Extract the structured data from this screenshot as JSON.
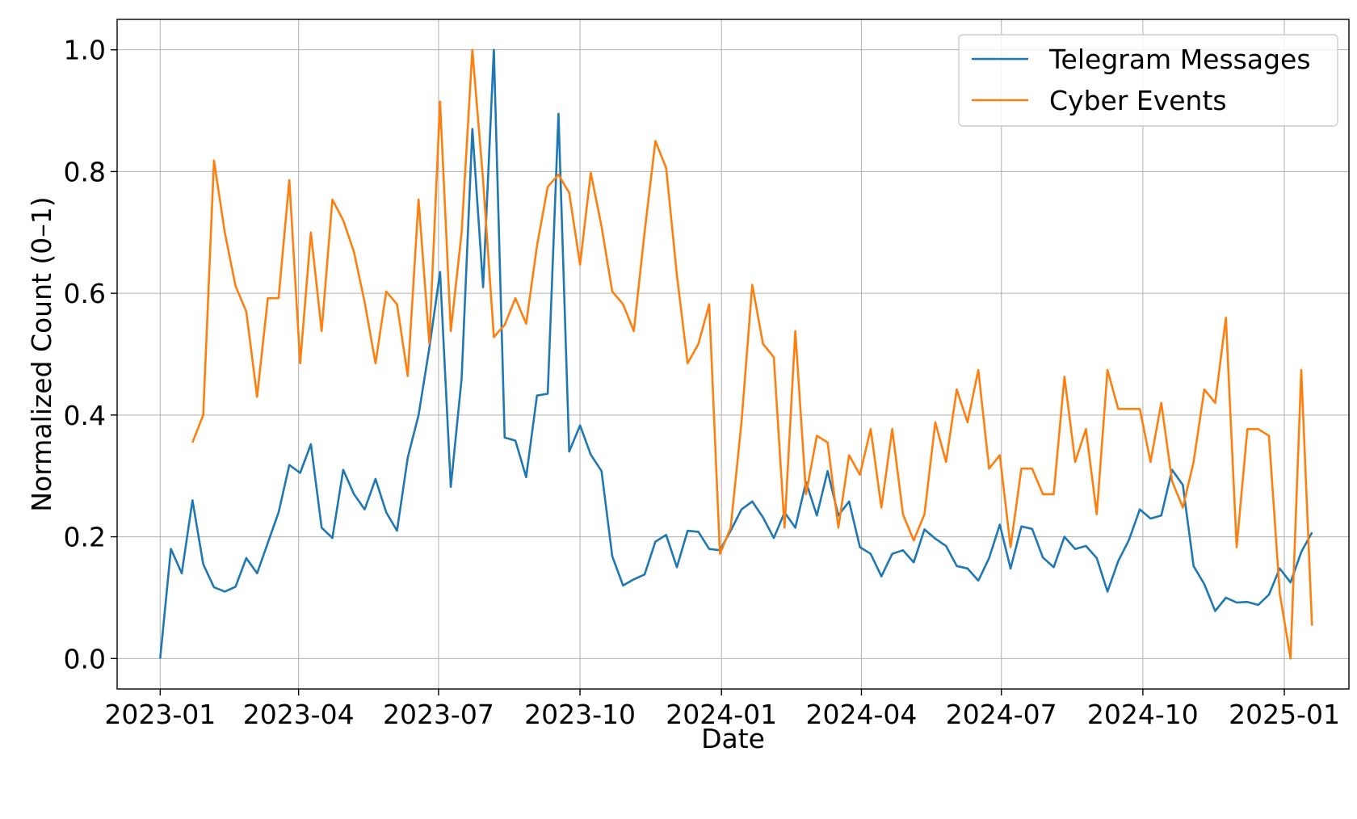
{
  "chart_data": {
    "type": "line",
    "xlabel": "Date",
    "ylabel": "Normalized Count (0–1)",
    "x_range": [
      "2022-12-04",
      "2025-02-12"
    ],
    "ylim": [
      -0.05,
      1.05
    ],
    "grid": true,
    "legend_placement": "top-right",
    "x_ticks": [
      "2023-01",
      "2023-04",
      "2023-07",
      "2023-10",
      "2024-01",
      "2024-04",
      "2024-07",
      "2024-10",
      "2025-01"
    ],
    "y_ticks": [
      "0.0",
      "0.2",
      "0.4",
      "0.6",
      "0.8",
      "1.0"
    ],
    "series": [
      {
        "name": "Telegram Messages",
        "color": "#1f77b4",
        "points": [
          [
            "2023-01-01",
            0.0
          ],
          [
            "2023-01-08",
            0.18
          ],
          [
            "2023-01-15",
            0.14
          ],
          [
            "2023-01-22",
            0.26
          ],
          [
            "2023-01-29",
            0.155
          ],
          [
            "2023-02-05",
            0.117
          ],
          [
            "2023-02-12",
            0.11
          ],
          [
            "2023-02-19",
            0.118
          ],
          [
            "2023-02-26",
            0.165
          ],
          [
            "2023-03-05",
            0.14
          ],
          [
            "2023-03-12",
            0.19
          ],
          [
            "2023-03-19",
            0.24
          ],
          [
            "2023-03-26",
            0.318
          ],
          [
            "2023-04-02",
            0.305
          ],
          [
            "2023-04-09",
            0.352
          ],
          [
            "2023-04-16",
            0.215
          ],
          [
            "2023-04-23",
            0.198
          ],
          [
            "2023-04-30",
            0.31
          ],
          [
            "2023-05-07",
            0.27
          ],
          [
            "2023-05-14",
            0.245
          ],
          [
            "2023-05-21",
            0.295
          ],
          [
            "2023-05-28",
            0.24
          ],
          [
            "2023-06-04",
            0.21
          ],
          [
            "2023-06-11",
            0.33
          ],
          [
            "2023-06-18",
            0.4
          ],
          [
            "2023-06-25",
            0.51
          ],
          [
            "2023-07-02",
            0.635
          ],
          [
            "2023-07-09",
            0.282
          ],
          [
            "2023-07-16",
            0.46
          ],
          [
            "2023-07-23",
            0.87
          ],
          [
            "2023-07-30",
            0.61
          ],
          [
            "2023-08-06",
            1.0
          ],
          [
            "2023-08-13",
            0.363
          ],
          [
            "2023-08-20",
            0.358
          ],
          [
            "2023-08-27",
            0.298
          ],
          [
            "2023-09-03",
            0.432
          ],
          [
            "2023-09-10",
            0.435
          ],
          [
            "2023-09-17",
            0.895
          ],
          [
            "2023-09-24",
            0.34
          ],
          [
            "2023-10-01",
            0.383
          ],
          [
            "2023-10-08",
            0.335
          ],
          [
            "2023-10-15",
            0.308
          ],
          [
            "2023-10-22",
            0.168
          ],
          [
            "2023-10-29",
            0.12
          ],
          [
            "2023-11-05",
            0.13
          ],
          [
            "2023-11-12",
            0.138
          ],
          [
            "2023-11-19",
            0.192
          ],
          [
            "2023-11-26",
            0.203
          ],
          [
            "2023-12-03",
            0.15
          ],
          [
            "2023-12-10",
            0.21
          ],
          [
            "2023-12-17",
            0.208
          ],
          [
            "2023-12-24",
            0.18
          ],
          [
            "2023-12-31",
            0.178
          ],
          [
            "2024-01-07",
            0.21
          ],
          [
            "2024-01-14",
            0.245
          ],
          [
            "2024-01-21",
            0.258
          ],
          [
            "2024-01-28",
            0.232
          ],
          [
            "2024-02-04",
            0.198
          ],
          [
            "2024-02-11",
            0.24
          ],
          [
            "2024-02-18",
            0.215
          ],
          [
            "2024-02-25",
            0.29
          ],
          [
            "2024-03-03",
            0.235
          ],
          [
            "2024-03-10",
            0.308
          ],
          [
            "2024-03-17",
            0.235
          ],
          [
            "2024-03-24",
            0.258
          ],
          [
            "2024-03-31",
            0.183
          ],
          [
            "2024-04-07",
            0.172
          ],
          [
            "2024-04-14",
            0.135
          ],
          [
            "2024-04-21",
            0.172
          ],
          [
            "2024-04-28",
            0.178
          ],
          [
            "2024-05-05",
            0.158
          ],
          [
            "2024-05-12",
            0.212
          ],
          [
            "2024-05-19",
            0.197
          ],
          [
            "2024-05-26",
            0.185
          ],
          [
            "2024-06-02",
            0.152
          ],
          [
            "2024-06-09",
            0.148
          ],
          [
            "2024-06-16",
            0.128
          ],
          [
            "2024-06-23",
            0.165
          ],
          [
            "2024-06-30",
            0.22
          ],
          [
            "2024-07-07",
            0.148
          ],
          [
            "2024-07-14",
            0.217
          ],
          [
            "2024-07-21",
            0.213
          ],
          [
            "2024-07-28",
            0.166
          ],
          [
            "2024-08-04",
            0.15
          ],
          [
            "2024-08-11",
            0.2
          ],
          [
            "2024-08-18",
            0.18
          ],
          [
            "2024-08-25",
            0.185
          ],
          [
            "2024-09-01",
            0.165
          ],
          [
            "2024-09-08",
            0.11
          ],
          [
            "2024-09-15",
            0.16
          ],
          [
            "2024-09-22",
            0.195
          ],
          [
            "2024-09-29",
            0.245
          ],
          [
            "2024-10-06",
            0.23
          ],
          [
            "2024-10-13",
            0.235
          ],
          [
            "2024-10-20",
            0.31
          ],
          [
            "2024-10-27",
            0.285
          ],
          [
            "2024-11-03",
            0.152
          ],
          [
            "2024-11-10",
            0.122
          ],
          [
            "2024-11-17",
            0.078
          ],
          [
            "2024-11-24",
            0.1
          ],
          [
            "2024-12-01",
            0.092
          ],
          [
            "2024-12-08",
            0.093
          ],
          [
            "2024-12-15",
            0.088
          ],
          [
            "2024-12-22",
            0.105
          ],
          [
            "2024-12-29",
            0.148
          ],
          [
            "2025-01-05",
            0.125
          ],
          [
            "2025-01-12",
            0.175
          ],
          [
            "2025-01-19",
            0.207
          ]
        ]
      },
      {
        "name": "Cyber Events",
        "color": "#ff7f0e",
        "points": [
          [
            "2023-01-22",
            0.355
          ],
          [
            "2023-01-29",
            0.4
          ],
          [
            "2023-02-05",
            0.818
          ],
          [
            "2023-02-12",
            0.7
          ],
          [
            "2023-02-19",
            0.612
          ],
          [
            "2023-02-26",
            0.57
          ],
          [
            "2023-03-05",
            0.43
          ],
          [
            "2023-03-12",
            0.592
          ],
          [
            "2023-03-19",
            0.592
          ],
          [
            "2023-03-26",
            0.786
          ],
          [
            "2023-04-02",
            0.485
          ],
          [
            "2023-04-09",
            0.7
          ],
          [
            "2023-04-16",
            0.538
          ],
          [
            "2023-04-23",
            0.754
          ],
          [
            "2023-04-30",
            0.72
          ],
          [
            "2023-05-07",
            0.668
          ],
          [
            "2023-05-14",
            0.585
          ],
          [
            "2023-05-21",
            0.485
          ],
          [
            "2023-05-28",
            0.603
          ],
          [
            "2023-06-04",
            0.582
          ],
          [
            "2023-06-11",
            0.464
          ],
          [
            "2023-06-18",
            0.754
          ],
          [
            "2023-06-25",
            0.518
          ],
          [
            "2023-07-02",
            0.915
          ],
          [
            "2023-07-09",
            0.538
          ],
          [
            "2023-07-16",
            0.7
          ],
          [
            "2023-07-23",
            1.0
          ],
          [
            "2023-07-30",
            0.785
          ],
          [
            "2023-08-06",
            0.528
          ],
          [
            "2023-08-13",
            0.548
          ],
          [
            "2023-08-20",
            0.592
          ],
          [
            "2023-08-27",
            0.55
          ],
          [
            "2023-09-03",
            0.678
          ],
          [
            "2023-09-10",
            0.775
          ],
          [
            "2023-09-17",
            0.795
          ],
          [
            "2023-09-24",
            0.765
          ],
          [
            "2023-10-01",
            0.647
          ],
          [
            "2023-10-08",
            0.798
          ],
          [
            "2023-10-15",
            0.71
          ],
          [
            "2023-10-22",
            0.603
          ],
          [
            "2023-10-29",
            0.582
          ],
          [
            "2023-11-05",
            0.538
          ],
          [
            "2023-11-12",
            0.7
          ],
          [
            "2023-11-19",
            0.85
          ],
          [
            "2023-11-26",
            0.806
          ],
          [
            "2023-12-03",
            0.63
          ],
          [
            "2023-12-10",
            0.485
          ],
          [
            "2023-12-17",
            0.517
          ],
          [
            "2023-12-24",
            0.582
          ],
          [
            "2023-12-31",
            0.172
          ],
          [
            "2024-01-07",
            0.215
          ],
          [
            "2024-01-14",
            0.388
          ],
          [
            "2024-01-21",
            0.614
          ],
          [
            "2024-01-28",
            0.517
          ],
          [
            "2024-02-04",
            0.495
          ],
          [
            "2024-02-11",
            0.215
          ],
          [
            "2024-02-18",
            0.538
          ],
          [
            "2024-02-25",
            0.27
          ],
          [
            "2024-03-03",
            0.366
          ],
          [
            "2024-03-10",
            0.355
          ],
          [
            "2024-03-17",
            0.215
          ],
          [
            "2024-03-24",
            0.334
          ],
          [
            "2024-03-31",
            0.302
          ],
          [
            "2024-04-07",
            0.377
          ],
          [
            "2024-04-14",
            0.248
          ],
          [
            "2024-04-21",
            0.377
          ],
          [
            "2024-04-28",
            0.237
          ],
          [
            "2024-05-05",
            0.194
          ],
          [
            "2024-05-12",
            0.237
          ],
          [
            "2024-05-19",
            0.388
          ],
          [
            "2024-05-26",
            0.323
          ],
          [
            "2024-06-02",
            0.442
          ],
          [
            "2024-06-09",
            0.388
          ],
          [
            "2024-06-16",
            0.474
          ],
          [
            "2024-06-23",
            0.312
          ],
          [
            "2024-06-30",
            0.334
          ],
          [
            "2024-07-07",
            0.183
          ],
          [
            "2024-07-14",
            0.312
          ],
          [
            "2024-07-21",
            0.312
          ],
          [
            "2024-07-28",
            0.27
          ],
          [
            "2024-08-04",
            0.27
          ],
          [
            "2024-08-11",
            0.463
          ],
          [
            "2024-08-18",
            0.323
          ],
          [
            "2024-08-25",
            0.377
          ],
          [
            "2024-09-01",
            0.237
          ],
          [
            "2024-09-08",
            0.474
          ],
          [
            "2024-09-15",
            0.41
          ],
          [
            "2024-09-22",
            0.41
          ],
          [
            "2024-09-29",
            0.41
          ],
          [
            "2024-10-06",
            0.323
          ],
          [
            "2024-10-13",
            0.42
          ],
          [
            "2024-10-20",
            0.291
          ],
          [
            "2024-10-27",
            0.248
          ],
          [
            "2024-11-03",
            0.323
          ],
          [
            "2024-11-10",
            0.442
          ],
          [
            "2024-11-17",
            0.42
          ],
          [
            "2024-11-24",
            0.56
          ],
          [
            "2024-12-01",
            0.183
          ],
          [
            "2024-12-08",
            0.377
          ],
          [
            "2024-12-15",
            0.377
          ],
          [
            "2024-12-22",
            0.366
          ],
          [
            "2024-12-29",
            0.108
          ],
          [
            "2025-01-05",
            0.0
          ],
          [
            "2025-01-12",
            0.474
          ],
          [
            "2025-01-19",
            0.054
          ]
        ]
      }
    ]
  }
}
